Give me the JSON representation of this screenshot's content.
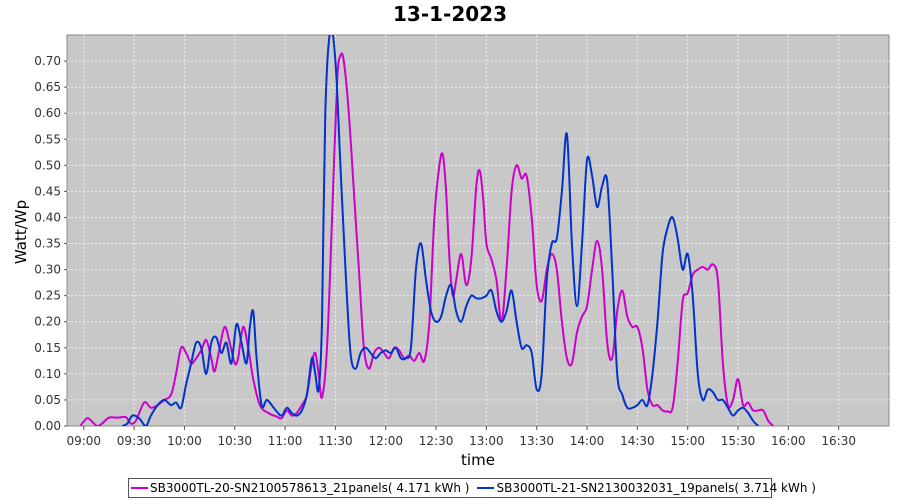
{
  "chart_data": {
    "type": "line",
    "title": "13-1-2023",
    "xlabel": "time",
    "ylabel": "Watt/Wp",
    "ylim": [
      0,
      0.75
    ],
    "xlim": [
      "08:50",
      "17:00"
    ],
    "grid": true,
    "legend_position": "bottom",
    "x_ticks": [
      "09:00",
      "09:30",
      "10:00",
      "10:30",
      "11:00",
      "11:30",
      "12:00",
      "12:30",
      "13:00",
      "13:30",
      "14:00",
      "14:30",
      "15:00",
      "15:30",
      "16:00",
      "16:30"
    ],
    "y_ticks": [
      "0.00",
      "0.05",
      "0.10",
      "0.15",
      "0.20",
      "0.25",
      "0.30",
      "0.35",
      "0.40",
      "0.45",
      "0.50",
      "0.55",
      "0.60",
      "0.65",
      "0.70"
    ],
    "series": [
      {
        "name": "SB3000TL-20-SN2100578613_21panels( 4.171 kWh )",
        "color": "#cc00cc",
        "points": [
          [
            "08:58",
            0.0
          ],
          [
            "09:02",
            0.015
          ],
          [
            "09:05",
            0.008
          ],
          [
            "09:08",
            0.0
          ],
          [
            "09:11",
            0.005
          ],
          [
            "09:15",
            0.016
          ],
          [
            "09:20",
            0.016
          ],
          [
            "09:25",
            0.017
          ],
          [
            "09:28",
            0.005
          ],
          [
            "09:31",
            0.01
          ],
          [
            "09:36",
            0.045
          ],
          [
            "09:40",
            0.035
          ],
          [
            "09:44",
            0.04
          ],
          [
            "09:48",
            0.05
          ],
          [
            "09:52",
            0.06
          ],
          [
            "09:55",
            0.1
          ],
          [
            "09:58",
            0.15
          ],
          [
            "10:01",
            0.14
          ],
          [
            "10:04",
            0.12
          ],
          [
            "10:07",
            0.13
          ],
          [
            "10:10",
            0.145
          ],
          [
            "10:13",
            0.165
          ],
          [
            "10:16",
            0.13
          ],
          [
            "10:18",
            0.105
          ],
          [
            "10:21",
            0.15
          ],
          [
            "10:24",
            0.19
          ],
          [
            "10:27",
            0.16
          ],
          [
            "10:30",
            0.12
          ],
          [
            "10:32",
            0.13
          ],
          [
            "10:35",
            0.19
          ],
          [
            "10:38",
            0.15
          ],
          [
            "10:41",
            0.09
          ],
          [
            "10:45",
            0.04
          ],
          [
            "10:50",
            0.025
          ],
          [
            "10:55",
            0.018
          ],
          [
            "10:58",
            0.015
          ],
          [
            "11:01",
            0.03
          ],
          [
            "11:04",
            0.02
          ],
          [
            "11:07",
            0.025
          ],
          [
            "11:10",
            0.04
          ],
          [
            "11:13",
            0.06
          ],
          [
            "11:16",
            0.12
          ],
          [
            "11:18",
            0.14
          ],
          [
            "11:20",
            0.1
          ],
          [
            "11:22",
            0.055
          ],
          [
            "11:25",
            0.15
          ],
          [
            "11:28",
            0.4
          ],
          [
            "11:31",
            0.66
          ],
          [
            "11:33",
            0.71
          ],
          [
            "11:35",
            0.7
          ],
          [
            "11:38",
            0.6
          ],
          [
            "11:41",
            0.45
          ],
          [
            "11:44",
            0.3
          ],
          [
            "11:47",
            0.15
          ],
          [
            "11:50",
            0.11
          ],
          [
            "11:53",
            0.14
          ],
          [
            "11:56",
            0.15
          ],
          [
            "11:59",
            0.14
          ],
          [
            "12:02",
            0.13
          ],
          [
            "12:05",
            0.15
          ],
          [
            "12:08",
            0.145
          ],
          [
            "12:11",
            0.13
          ],
          [
            "12:14",
            0.135
          ],
          [
            "12:17",
            0.125
          ],
          [
            "12:20",
            0.14
          ],
          [
            "12:23",
            0.125
          ],
          [
            "12:26",
            0.2
          ],
          [
            "12:29",
            0.4
          ],
          [
            "12:32",
            0.5
          ],
          [
            "12:34",
            0.52
          ],
          [
            "12:36",
            0.45
          ],
          [
            "12:38",
            0.32
          ],
          [
            "12:40",
            0.25
          ],
          [
            "12:42",
            0.28
          ],
          [
            "12:45",
            0.33
          ],
          [
            "12:48",
            0.27
          ],
          [
            "12:51",
            0.32
          ],
          [
            "12:54",
            0.46
          ],
          [
            "12:56",
            0.49
          ],
          [
            "12:58",
            0.44
          ],
          [
            "13:00",
            0.35
          ],
          [
            "13:03",
            0.32
          ],
          [
            "13:06",
            0.28
          ],
          [
            "13:09",
            0.2
          ],
          [
            "13:12",
            0.3
          ],
          [
            "13:15",
            0.45
          ],
          [
            "13:18",
            0.5
          ],
          [
            "13:21",
            0.475
          ],
          [
            "13:24",
            0.48
          ],
          [
            "13:27",
            0.4
          ],
          [
            "13:30",
            0.27
          ],
          [
            "13:33",
            0.24
          ],
          [
            "13:36",
            0.3
          ],
          [
            "13:39",
            0.33
          ],
          [
            "13:42",
            0.3
          ],
          [
            "13:45",
            0.2
          ],
          [
            "13:48",
            0.13
          ],
          [
            "13:51",
            0.12
          ],
          [
            "13:54",
            0.18
          ],
          [
            "13:57",
            0.21
          ],
          [
            "14:00",
            0.23
          ],
          [
            "14:03",
            0.3
          ],
          [
            "14:06",
            0.355
          ],
          [
            "14:09",
            0.3
          ],
          [
            "14:12",
            0.16
          ],
          [
            "14:15",
            0.13
          ],
          [
            "14:18",
            0.22
          ],
          [
            "14:21",
            0.26
          ],
          [
            "14:24",
            0.21
          ],
          [
            "14:27",
            0.19
          ],
          [
            "14:30",
            0.19
          ],
          [
            "14:33",
            0.15
          ],
          [
            "14:36",
            0.07
          ],
          [
            "14:39",
            0.04
          ],
          [
            "14:42",
            0.04
          ],
          [
            "14:45",
            0.03
          ],
          [
            "14:48",
            0.028
          ],
          [
            "14:51",
            0.035
          ],
          [
            "14:54",
            0.12
          ],
          [
            "14:57",
            0.24
          ],
          [
            "15:00",
            0.255
          ],
          [
            "15:03",
            0.29
          ],
          [
            "15:06",
            0.3
          ],
          [
            "15:09",
            0.305
          ],
          [
            "15:12",
            0.3
          ],
          [
            "15:15",
            0.31
          ],
          [
            "15:18",
            0.28
          ],
          [
            "15:21",
            0.12
          ],
          [
            "15:24",
            0.04
          ],
          [
            "15:27",
            0.05
          ],
          [
            "15:30",
            0.09
          ],
          [
            "15:33",
            0.04
          ],
          [
            "15:36",
            0.045
          ],
          [
            "15:39",
            0.03
          ],
          [
            "15:42",
            0.03
          ],
          [
            "15:45",
            0.03
          ],
          [
            "15:48",
            0.01
          ],
          [
            "15:51",
            0.0
          ]
        ]
      },
      {
        "name": "SB3000TL-21-SN2130032031_19panels( 3.714 kWh )",
        "color": "#0033cc",
        "points": [
          [
            "09:23",
            0.0
          ],
          [
            "09:26",
            0.005
          ],
          [
            "09:29",
            0.02
          ],
          [
            "09:33",
            0.015
          ],
          [
            "09:37",
            0.0
          ],
          [
            "09:40",
            0.02
          ],
          [
            "09:44",
            0.04
          ],
          [
            "09:48",
            0.05
          ],
          [
            "09:52",
            0.04
          ],
          [
            "09:55",
            0.045
          ],
          [
            "09:58",
            0.035
          ],
          [
            "10:01",
            0.08
          ],
          [
            "10:04",
            0.12
          ],
          [
            "10:07",
            0.16
          ],
          [
            "10:10",
            0.15
          ],
          [
            "10:13",
            0.1
          ],
          [
            "10:16",
            0.16
          ],
          [
            "10:19",
            0.17
          ],
          [
            "10:22",
            0.14
          ],
          [
            "10:25",
            0.16
          ],
          [
            "10:28",
            0.12
          ],
          [
            "10:31",
            0.195
          ],
          [
            "10:34",
            0.16
          ],
          [
            "10:37",
            0.12
          ],
          [
            "10:39",
            0.19
          ],
          [
            "10:41",
            0.22
          ],
          [
            "10:43",
            0.13
          ],
          [
            "10:46",
            0.04
          ],
          [
            "10:49",
            0.05
          ],
          [
            "10:52",
            0.04
          ],
          [
            "10:55",
            0.028
          ],
          [
            "10:58",
            0.02
          ],
          [
            "11:01",
            0.035
          ],
          [
            "11:04",
            0.025
          ],
          [
            "11:07",
            0.02
          ],
          [
            "11:10",
            0.03
          ],
          [
            "11:13",
            0.06
          ],
          [
            "11:16",
            0.13
          ],
          [
            "11:18",
            0.1
          ],
          [
            "11:20",
            0.07
          ],
          [
            "11:22",
            0.2
          ],
          [
            "11:24",
            0.6
          ],
          [
            "11:27",
            0.76
          ],
          [
            "11:30",
            0.7
          ],
          [
            "11:33",
            0.5
          ],
          [
            "11:36",
            0.3
          ],
          [
            "11:39",
            0.14
          ],
          [
            "11:42",
            0.11
          ],
          [
            "11:45",
            0.14
          ],
          [
            "11:48",
            0.15
          ],
          [
            "11:51",
            0.14
          ],
          [
            "11:54",
            0.13
          ],
          [
            "11:57",
            0.14
          ],
          [
            "12:00",
            0.145
          ],
          [
            "12:03",
            0.14
          ],
          [
            "12:06",
            0.15
          ],
          [
            "12:09",
            0.13
          ],
          [
            "12:12",
            0.13
          ],
          [
            "12:15",
            0.15
          ],
          [
            "12:18",
            0.3
          ],
          [
            "12:21",
            0.35
          ],
          [
            "12:24",
            0.28
          ],
          [
            "12:27",
            0.22
          ],
          [
            "12:30",
            0.2
          ],
          [
            "12:33",
            0.21
          ],
          [
            "12:36",
            0.25
          ],
          [
            "12:39",
            0.27
          ],
          [
            "12:42",
            0.22
          ],
          [
            "12:45",
            0.2
          ],
          [
            "12:48",
            0.23
          ],
          [
            "12:51",
            0.25
          ],
          [
            "12:54",
            0.245
          ],
          [
            "12:57",
            0.245
          ],
          [
            "13:00",
            0.25
          ],
          [
            "13:03",
            0.26
          ],
          [
            "13:06",
            0.22
          ],
          [
            "13:09",
            0.2
          ],
          [
            "13:12",
            0.22
          ],
          [
            "13:15",
            0.26
          ],
          [
            "13:18",
            0.2
          ],
          [
            "13:21",
            0.15
          ],
          [
            "13:24",
            0.155
          ],
          [
            "13:27",
            0.14
          ],
          [
            "13:30",
            0.07
          ],
          [
            "13:33",
            0.1
          ],
          [
            "13:36",
            0.28
          ],
          [
            "13:39",
            0.35
          ],
          [
            "13:42",
            0.36
          ],
          [
            "13:45",
            0.45
          ],
          [
            "13:48",
            0.56
          ],
          [
            "13:51",
            0.35
          ],
          [
            "13:54",
            0.23
          ],
          [
            "13:57",
            0.35
          ],
          [
            "14:00",
            0.51
          ],
          [
            "14:03",
            0.48
          ],
          [
            "14:06",
            0.42
          ],
          [
            "14:09",
            0.46
          ],
          [
            "14:12",
            0.47
          ],
          [
            "14:15",
            0.3
          ],
          [
            "14:18",
            0.1
          ],
          [
            "14:21",
            0.06
          ],
          [
            "14:24",
            0.035
          ],
          [
            "14:27",
            0.035
          ],
          [
            "14:30",
            0.04
          ],
          [
            "14:33",
            0.05
          ],
          [
            "14:36",
            0.04
          ],
          [
            "14:39",
            0.1
          ],
          [
            "14:42",
            0.2
          ],
          [
            "14:45",
            0.33
          ],
          [
            "14:48",
            0.38
          ],
          [
            "14:51",
            0.4
          ],
          [
            "14:54",
            0.36
          ],
          [
            "14:57",
            0.3
          ],
          [
            "15:00",
            0.33
          ],
          [
            "15:03",
            0.25
          ],
          [
            "15:06",
            0.1
          ],
          [
            "15:09",
            0.05
          ],
          [
            "15:12",
            0.07
          ],
          [
            "15:15",
            0.065
          ],
          [
            "15:18",
            0.05
          ],
          [
            "15:21",
            0.05
          ],
          [
            "15:24",
            0.035
          ],
          [
            "15:27",
            0.02
          ],
          [
            "15:30",
            0.03
          ],
          [
            "15:33",
            0.035
          ],
          [
            "15:36",
            0.025
          ],
          [
            "15:39",
            0.01
          ],
          [
            "15:42",
            0.0
          ]
        ]
      }
    ]
  }
}
